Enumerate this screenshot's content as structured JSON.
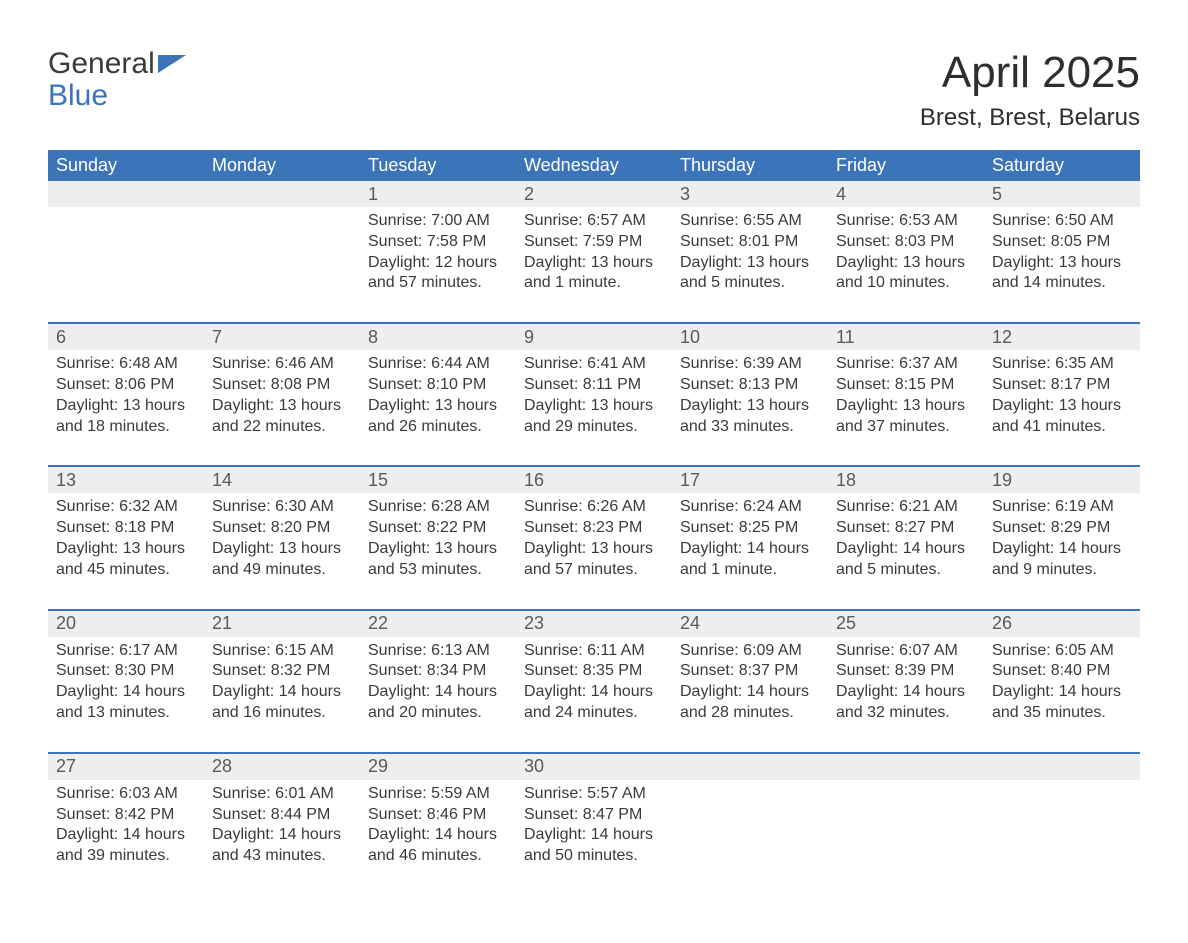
{
  "logo": {
    "word1": "General",
    "word2": "Blue"
  },
  "title": "April 2025",
  "location": "Brest, Brest, Belarus",
  "colors": {
    "brand_blue": "#3b74b9",
    "header_text": "#ffffff",
    "daynum_bg": "#eeeeee",
    "body_text": "#3a3a3a",
    "page_bg": "#ffffff"
  },
  "typography": {
    "title_fontsize": 44,
    "location_fontsize": 24,
    "header_fontsize": 18,
    "cell_fontsize": 16
  },
  "day_headers": [
    "Sunday",
    "Monday",
    "Tuesday",
    "Wednesday",
    "Thursday",
    "Friday",
    "Saturday"
  ],
  "weeks": [
    [
      {
        "n": "",
        "sunrise": "",
        "sunset": "",
        "daylight1": "",
        "daylight2": ""
      },
      {
        "n": "",
        "sunrise": "",
        "sunset": "",
        "daylight1": "",
        "daylight2": ""
      },
      {
        "n": "1",
        "sunrise": "Sunrise: 7:00 AM",
        "sunset": "Sunset: 7:58 PM",
        "daylight1": "Daylight: 12 hours",
        "daylight2": "and 57 minutes."
      },
      {
        "n": "2",
        "sunrise": "Sunrise: 6:57 AM",
        "sunset": "Sunset: 7:59 PM",
        "daylight1": "Daylight: 13 hours",
        "daylight2": "and 1 minute."
      },
      {
        "n": "3",
        "sunrise": "Sunrise: 6:55 AM",
        "sunset": "Sunset: 8:01 PM",
        "daylight1": "Daylight: 13 hours",
        "daylight2": "and 5 minutes."
      },
      {
        "n": "4",
        "sunrise": "Sunrise: 6:53 AM",
        "sunset": "Sunset: 8:03 PM",
        "daylight1": "Daylight: 13 hours",
        "daylight2": "and 10 minutes."
      },
      {
        "n": "5",
        "sunrise": "Sunrise: 6:50 AM",
        "sunset": "Sunset: 8:05 PM",
        "daylight1": "Daylight: 13 hours",
        "daylight2": "and 14 minutes."
      }
    ],
    [
      {
        "n": "6",
        "sunrise": "Sunrise: 6:48 AM",
        "sunset": "Sunset: 8:06 PM",
        "daylight1": "Daylight: 13 hours",
        "daylight2": "and 18 minutes."
      },
      {
        "n": "7",
        "sunrise": "Sunrise: 6:46 AM",
        "sunset": "Sunset: 8:08 PM",
        "daylight1": "Daylight: 13 hours",
        "daylight2": "and 22 minutes."
      },
      {
        "n": "8",
        "sunrise": "Sunrise: 6:44 AM",
        "sunset": "Sunset: 8:10 PM",
        "daylight1": "Daylight: 13 hours",
        "daylight2": "and 26 minutes."
      },
      {
        "n": "9",
        "sunrise": "Sunrise: 6:41 AM",
        "sunset": "Sunset: 8:11 PM",
        "daylight1": "Daylight: 13 hours",
        "daylight2": "and 29 minutes."
      },
      {
        "n": "10",
        "sunrise": "Sunrise: 6:39 AM",
        "sunset": "Sunset: 8:13 PM",
        "daylight1": "Daylight: 13 hours",
        "daylight2": "and 33 minutes."
      },
      {
        "n": "11",
        "sunrise": "Sunrise: 6:37 AM",
        "sunset": "Sunset: 8:15 PM",
        "daylight1": "Daylight: 13 hours",
        "daylight2": "and 37 minutes."
      },
      {
        "n": "12",
        "sunrise": "Sunrise: 6:35 AM",
        "sunset": "Sunset: 8:17 PM",
        "daylight1": "Daylight: 13 hours",
        "daylight2": "and 41 minutes."
      }
    ],
    [
      {
        "n": "13",
        "sunrise": "Sunrise: 6:32 AM",
        "sunset": "Sunset: 8:18 PM",
        "daylight1": "Daylight: 13 hours",
        "daylight2": "and 45 minutes."
      },
      {
        "n": "14",
        "sunrise": "Sunrise: 6:30 AM",
        "sunset": "Sunset: 8:20 PM",
        "daylight1": "Daylight: 13 hours",
        "daylight2": "and 49 minutes."
      },
      {
        "n": "15",
        "sunrise": "Sunrise: 6:28 AM",
        "sunset": "Sunset: 8:22 PM",
        "daylight1": "Daylight: 13 hours",
        "daylight2": "and 53 minutes."
      },
      {
        "n": "16",
        "sunrise": "Sunrise: 6:26 AM",
        "sunset": "Sunset: 8:23 PM",
        "daylight1": "Daylight: 13 hours",
        "daylight2": "and 57 minutes."
      },
      {
        "n": "17",
        "sunrise": "Sunrise: 6:24 AM",
        "sunset": "Sunset: 8:25 PM",
        "daylight1": "Daylight: 14 hours",
        "daylight2": "and 1 minute."
      },
      {
        "n": "18",
        "sunrise": "Sunrise: 6:21 AM",
        "sunset": "Sunset: 8:27 PM",
        "daylight1": "Daylight: 14 hours",
        "daylight2": "and 5 minutes."
      },
      {
        "n": "19",
        "sunrise": "Sunrise: 6:19 AM",
        "sunset": "Sunset: 8:29 PM",
        "daylight1": "Daylight: 14 hours",
        "daylight2": "and 9 minutes."
      }
    ],
    [
      {
        "n": "20",
        "sunrise": "Sunrise: 6:17 AM",
        "sunset": "Sunset: 8:30 PM",
        "daylight1": "Daylight: 14 hours",
        "daylight2": "and 13 minutes."
      },
      {
        "n": "21",
        "sunrise": "Sunrise: 6:15 AM",
        "sunset": "Sunset: 8:32 PM",
        "daylight1": "Daylight: 14 hours",
        "daylight2": "and 16 minutes."
      },
      {
        "n": "22",
        "sunrise": "Sunrise: 6:13 AM",
        "sunset": "Sunset: 8:34 PM",
        "daylight1": "Daylight: 14 hours",
        "daylight2": "and 20 minutes."
      },
      {
        "n": "23",
        "sunrise": "Sunrise: 6:11 AM",
        "sunset": "Sunset: 8:35 PM",
        "daylight1": "Daylight: 14 hours",
        "daylight2": "and 24 minutes."
      },
      {
        "n": "24",
        "sunrise": "Sunrise: 6:09 AM",
        "sunset": "Sunset: 8:37 PM",
        "daylight1": "Daylight: 14 hours",
        "daylight2": "and 28 minutes."
      },
      {
        "n": "25",
        "sunrise": "Sunrise: 6:07 AM",
        "sunset": "Sunset: 8:39 PM",
        "daylight1": "Daylight: 14 hours",
        "daylight2": "and 32 minutes."
      },
      {
        "n": "26",
        "sunrise": "Sunrise: 6:05 AM",
        "sunset": "Sunset: 8:40 PM",
        "daylight1": "Daylight: 14 hours",
        "daylight2": "and 35 minutes."
      }
    ],
    [
      {
        "n": "27",
        "sunrise": "Sunrise: 6:03 AM",
        "sunset": "Sunset: 8:42 PM",
        "daylight1": "Daylight: 14 hours",
        "daylight2": "and 39 minutes."
      },
      {
        "n": "28",
        "sunrise": "Sunrise: 6:01 AM",
        "sunset": "Sunset: 8:44 PM",
        "daylight1": "Daylight: 14 hours",
        "daylight2": "and 43 minutes."
      },
      {
        "n": "29",
        "sunrise": "Sunrise: 5:59 AM",
        "sunset": "Sunset: 8:46 PM",
        "daylight1": "Daylight: 14 hours",
        "daylight2": "and 46 minutes."
      },
      {
        "n": "30",
        "sunrise": "Sunrise: 5:57 AM",
        "sunset": "Sunset: 8:47 PM",
        "daylight1": "Daylight: 14 hours",
        "daylight2": "and 50 minutes."
      },
      {
        "n": "",
        "sunrise": "",
        "sunset": "",
        "daylight1": "",
        "daylight2": ""
      },
      {
        "n": "",
        "sunrise": "",
        "sunset": "",
        "daylight1": "",
        "daylight2": ""
      },
      {
        "n": "",
        "sunrise": "",
        "sunset": "",
        "daylight1": "",
        "daylight2": ""
      }
    ]
  ]
}
